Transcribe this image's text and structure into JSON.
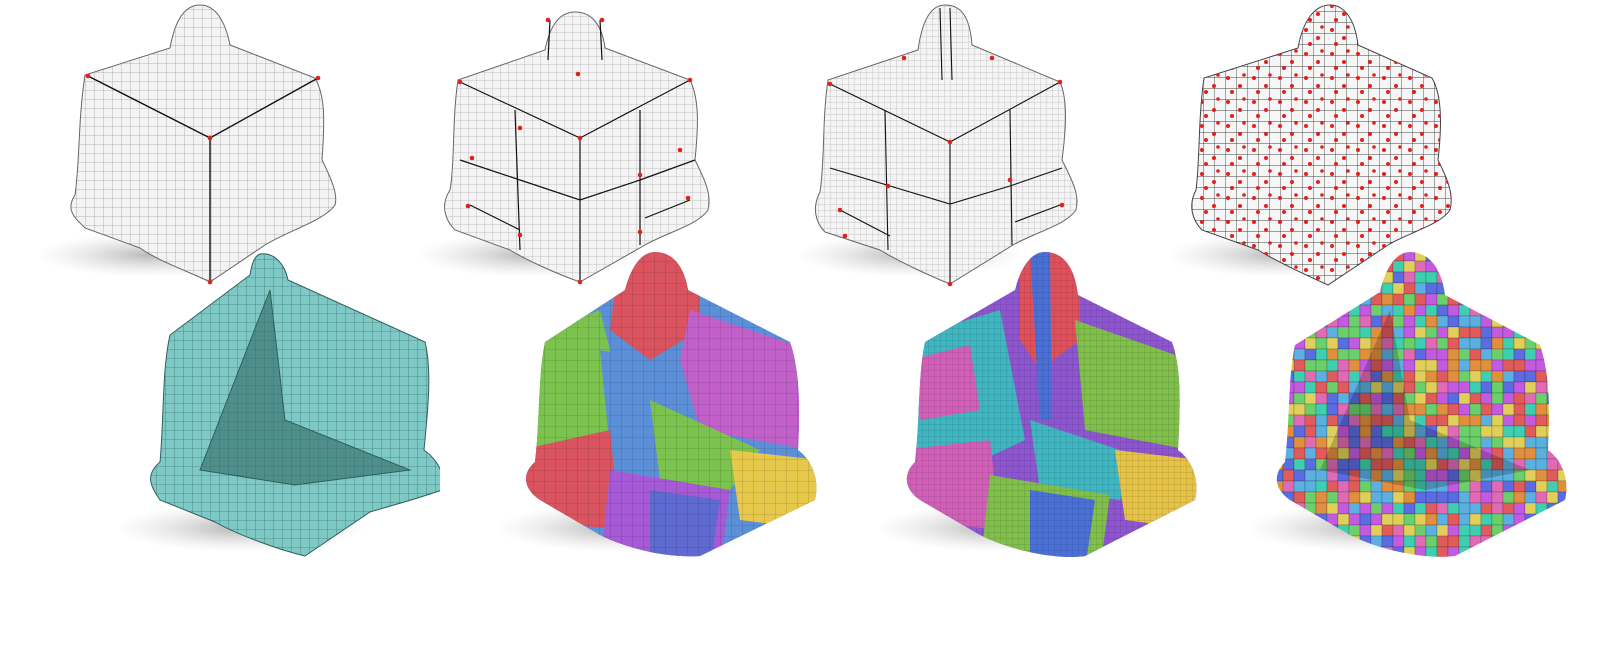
{
  "figure": {
    "top_row": [
      {
        "style": "wireframe",
        "singularity_color": "#e0201a"
      },
      {
        "style": "wireframe",
        "singularity_color": "#e0201a"
      },
      {
        "style": "wireframe",
        "singularity_color": "#e0201a"
      },
      {
        "style": "wireframe-dense-singularities",
        "singularity_color": "#e0201a"
      }
    ],
    "bottom_row": [
      {
        "style": "cutaway-solid",
        "fill": "#7cc8c4"
      },
      {
        "style": "cutaway-patches",
        "palette": [
          "#d9545e",
          "#5b8fd8",
          "#a65ad6",
          "#e6c84a",
          "#7cc24e",
          "#c060c8",
          "#3aa6b0"
        ]
      },
      {
        "style": "cutaway-patches-fine",
        "palette": [
          "#8d55d0",
          "#e0505a",
          "#3fb6c0",
          "#7fbf4a",
          "#e6c245",
          "#d15fb8",
          "#4a70d8"
        ]
      },
      {
        "style": "cutaway-random-cells",
        "palette": [
          "#e05b5b",
          "#5bb0e0",
          "#e0d05b",
          "#6bd06b",
          "#c25be0",
          "#e08f3f",
          "#5b6be0",
          "#e06bb5",
          "#3fcfb0"
        ]
      }
    ]
  }
}
